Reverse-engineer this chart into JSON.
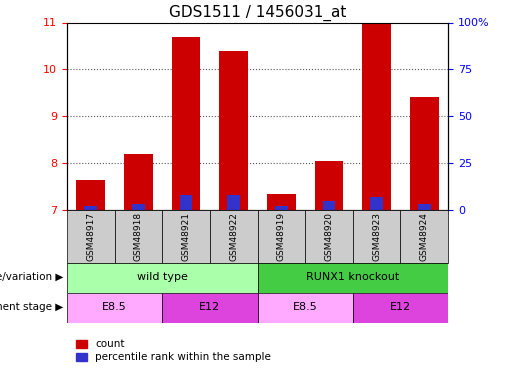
{
  "title": "GDS1511 / 1456031_at",
  "samples": [
    "GSM48917",
    "GSM48918",
    "GSM48921",
    "GSM48922",
    "GSM48919",
    "GSM48920",
    "GSM48923",
    "GSM48924"
  ],
  "count_values": [
    7.65,
    8.2,
    10.7,
    10.4,
    7.35,
    8.05,
    11.0,
    9.4
  ],
  "percentile_values": [
    2,
    3,
    8,
    8,
    2,
    5,
    7,
    3
  ],
  "ylim_left": [
    7,
    11
  ],
  "ylim_right": [
    0,
    100
  ],
  "yticks_left": [
    7,
    8,
    9,
    10,
    11
  ],
  "yticks_right": [
    0,
    25,
    50,
    75,
    100
  ],
  "ytick_labels_right": [
    "0",
    "25",
    "50",
    "75",
    "100%"
  ],
  "bar_baseline": 7,
  "bar_width": 0.6,
  "count_color": "#cc0000",
  "percentile_color": "#3333cc",
  "grid_color": "#555555",
  "genotype_groups": [
    {
      "label": "wild type",
      "start": 0,
      "end": 4,
      "color": "#aaffaa"
    },
    {
      "label": "RUNX1 knockout",
      "start": 4,
      "end": 8,
      "color": "#44cc44"
    }
  ],
  "development_groups": [
    {
      "label": "E8.5",
      "start": 0,
      "end": 2,
      "color": "#ffaaff"
    },
    {
      "label": "E12",
      "start": 2,
      "end": 4,
      "color": "#dd44dd"
    },
    {
      "label": "E8.5",
      "start": 4,
      "end": 6,
      "color": "#ffaaff"
    },
    {
      "label": "E12",
      "start": 6,
      "end": 8,
      "color": "#dd44dd"
    }
  ],
  "legend_count_label": "count",
  "legend_percentile_label": "percentile rank within the sample",
  "genotype_label": "genotype/variation",
  "development_label": "development stage",
  "sample_box_color": "#cccccc"
}
